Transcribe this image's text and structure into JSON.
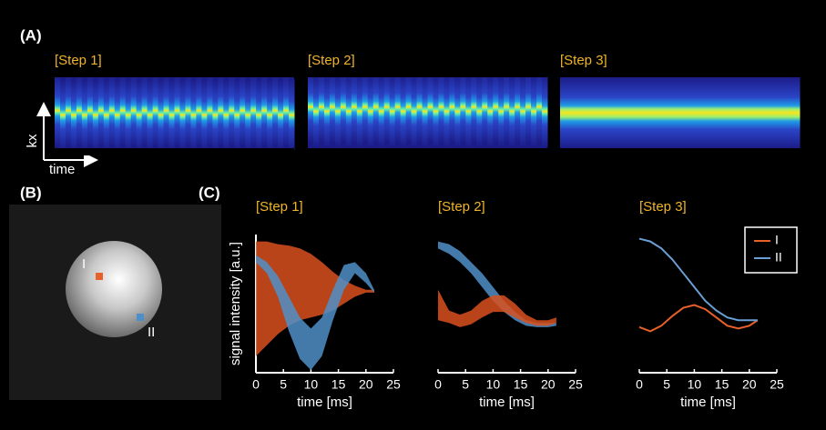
{
  "panel_a": {
    "label": "(A)",
    "steps": [
      "[Step 1]",
      "[Step 2]",
      "[Step 3]"
    ],
    "y_axis": "kx",
    "x_axis": "time"
  },
  "panel_b": {
    "label": "(B)",
    "markers": [
      "I",
      "II"
    ]
  },
  "panel_c": {
    "label": "(C)"
  },
  "chart_data": [
    {
      "type": "band",
      "title": "[Step 1]",
      "ylabel": "signal intensity [a.u.]",
      "xlabel": "time [ms]",
      "x": [
        0,
        2,
        4,
        6,
        8,
        10,
        12,
        14,
        16,
        18,
        20,
        21.5
      ],
      "xlim": [
        0,
        25
      ],
      "xticks": [
        0,
        5,
        10,
        15,
        20,
        25
      ],
      "ylim": [
        0,
        1
      ],
      "series": [
        {
          "color": "#d9501e",
          "upper": [
            0.95,
            0.95,
            0.93,
            0.92,
            0.9,
            0.86,
            0.8,
            0.73,
            0.67,
            0.63,
            0.6,
            0.6
          ],
          "lower": [
            0.12,
            0.2,
            0.28,
            0.34,
            0.38,
            0.4,
            0.42,
            0.45,
            0.5,
            0.55,
            0.58,
            0.58
          ]
        },
        {
          "color": "#4f8fc8",
          "upper": [
            0.85,
            0.8,
            0.7,
            0.55,
            0.4,
            0.32,
            0.4,
            0.6,
            0.78,
            0.8,
            0.72,
            0.6
          ],
          "lower": [
            0.8,
            0.72,
            0.55,
            0.3,
            0.1,
            0.02,
            0.12,
            0.38,
            0.6,
            0.72,
            0.65,
            0.58
          ]
        }
      ]
    },
    {
      "type": "band",
      "title": "[Step 2]",
      "xlabel": "time [ms]",
      "x": [
        0,
        2,
        4,
        6,
        8,
        10,
        12,
        14,
        16,
        18,
        20,
        21.5
      ],
      "xlim": [
        0,
        25
      ],
      "xticks": [
        0,
        5,
        10,
        15,
        20,
        25
      ],
      "ylim": [
        0,
        1
      ],
      "series": [
        {
          "color": "#4f8fc8",
          "upper": [
            0.95,
            0.93,
            0.88,
            0.8,
            0.72,
            0.62,
            0.52,
            0.44,
            0.38,
            0.36,
            0.36,
            0.36
          ],
          "lower": [
            0.9,
            0.86,
            0.8,
            0.72,
            0.62,
            0.52,
            0.44,
            0.38,
            0.34,
            0.33,
            0.33,
            0.34
          ]
        },
        {
          "color": "#d9501e",
          "upper": [
            0.6,
            0.45,
            0.42,
            0.45,
            0.52,
            0.56,
            0.56,
            0.5,
            0.42,
            0.38,
            0.38,
            0.4
          ],
          "lower": [
            0.38,
            0.36,
            0.33,
            0.35,
            0.4,
            0.44,
            0.44,
            0.4,
            0.36,
            0.34,
            0.34,
            0.36
          ]
        }
      ]
    },
    {
      "type": "line",
      "title": "[Step 3]",
      "xlabel": "time [ms]",
      "legend": "upper right",
      "x": [
        0,
        2,
        4,
        6,
        8,
        10,
        12,
        14,
        16,
        18,
        20,
        21.5
      ],
      "xlim": [
        0,
        25
      ],
      "xticks": [
        0,
        5,
        10,
        15,
        20,
        25
      ],
      "ylim": [
        0,
        1
      ],
      "series": [
        {
          "name": "I",
          "color": "#e8602a",
          "values": [
            0.33,
            0.3,
            0.34,
            0.41,
            0.47,
            0.49,
            0.46,
            0.4,
            0.34,
            0.32,
            0.34,
            0.38
          ]
        },
        {
          "name": "II",
          "color": "#6a9fd4",
          "values": [
            0.97,
            0.95,
            0.9,
            0.82,
            0.72,
            0.62,
            0.52,
            0.45,
            0.4,
            0.38,
            0.38,
            0.38
          ]
        }
      ]
    }
  ]
}
